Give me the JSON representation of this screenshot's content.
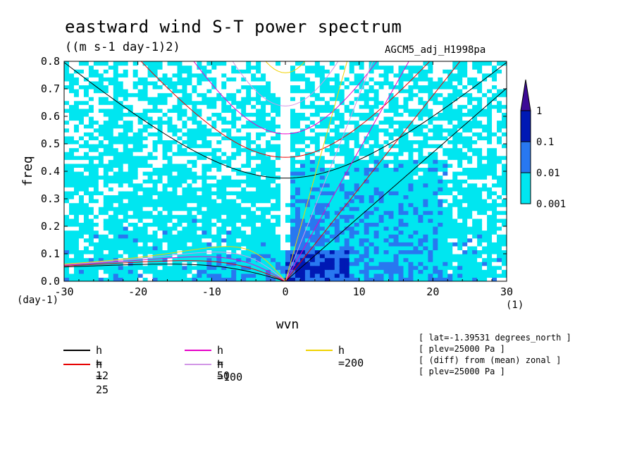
{
  "title": "eastward wind S-T power spectrum",
  "units": "((m s-1 day-1)2)",
  "run_name": "AGCM5_adj_H1998pa",
  "chart_data": {
    "type": "heatmap",
    "xlabel": "wvn",
    "ylabel": "freq",
    "xlim": [
      -30,
      30
    ],
    "ylim": [
      0,
      0.8
    ],
    "x_unit_label": "(1)",
    "y_unit_label": "(day-1)",
    "x_ticks": [
      -30,
      -20,
      -10,
      0,
      10,
      20,
      30
    ],
    "x_tick_labels": [
      "-30",
      "-20",
      "-10",
      "0",
      "10",
      "20",
      "30"
    ],
    "y_ticks": [
      0.0,
      0.1,
      0.2,
      0.3,
      0.4,
      0.5,
      0.6,
      0.7,
      0.8
    ],
    "y_tick_labels": [
      "0.0",
      "0.1",
      "0.2",
      "0.3",
      "0.4",
      "0.5",
      "0.6",
      "0.7",
      "0.8"
    ],
    "contour_levels": [
      0.001,
      0.01,
      0.1,
      1
    ],
    "colorbar_labels": [
      "1",
      "0.1",
      "0.01",
      "0.001"
    ],
    "level_colors": [
      "#ffffff",
      "#00e6f0",
      "#2878f0",
      "#0019b4",
      "#3c0a96"
    ],
    "dispersion_curves": [
      {
        "label": "h = 12",
        "h": 12,
        "color": "#000000"
      },
      {
        "label": "h = 25",
        "h": 25,
        "color": "#e60000"
      },
      {
        "label": "h = 50",
        "h": 50,
        "color": "#e600c8"
      },
      {
        "label": "h =100",
        "h": 100,
        "color": "#d296e6"
      },
      {
        "label": "h =200",
        "h": 200,
        "color": "#f0d200"
      }
    ],
    "grid": false
  },
  "meta_lines": [
    "[ lat=-1.39531 degrees_north ]",
    "[ plev=25000 Pa ]",
    "[ (diff) from (mean) zonal ]",
    "[ plev=25000 Pa ]"
  ]
}
